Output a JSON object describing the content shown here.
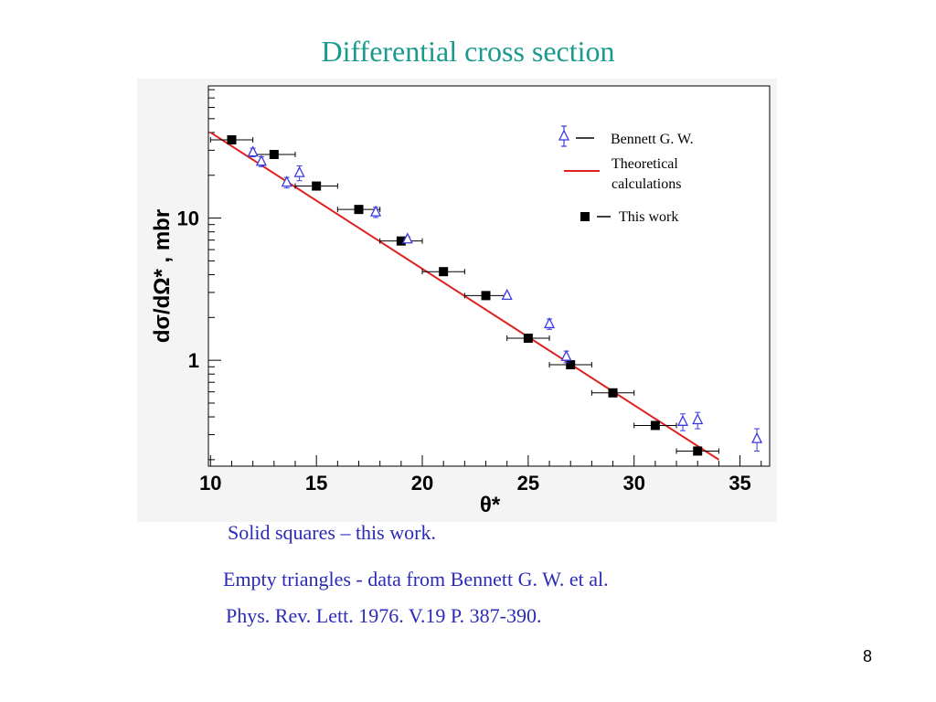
{
  "slide": {
    "title": "Differential  cross section",
    "captions": [
      "Solid squares – this work.",
      "Empty triangles -  data from  Bennett G. W. et al.",
      "Phys. Rev. Lett. 1976. V.19   P. 387-390."
    ],
    "page_number": "8"
  },
  "colors": {
    "title": "#1a9a8e",
    "caption": "#2b2bb8",
    "triangles": "#3a3ae0",
    "theory_line": "#e02020",
    "squares": "#000000"
  },
  "chart_data": {
    "type": "scatter",
    "title": "",
    "xlabel": "θ*",
    "ylabel": "dσ/dΩ* , mbr",
    "x_ticks": [
      "10",
      "15",
      "20",
      "25",
      "30",
      "35"
    ],
    "y_ticks": [
      "1",
      "10"
    ],
    "xlim": [
      9.9,
      36.4
    ],
    "ylim": [
      0.18,
      85
    ],
    "y_scale": "log",
    "legend_position": "top-right",
    "legend": [
      {
        "label": "Bennett G. W.",
        "marker": "open-triangle"
      },
      {
        "label": "Theoretical",
        "label2": "calculations",
        "marker": "line"
      },
      {
        "label": "This work",
        "marker": "filled-square"
      }
    ],
    "series": [
      {
        "name": "This work",
        "marker": "filled-square",
        "points": [
          {
            "x": 11,
            "y": 35.5,
            "xerr": 1.0
          },
          {
            "x": 13,
            "y": 28.0,
            "xerr": 1.0
          },
          {
            "x": 15,
            "y": 16.8,
            "xerr": 1.0
          },
          {
            "x": 17,
            "y": 11.5,
            "xerr": 1.0
          },
          {
            "x": 19,
            "y": 6.9,
            "xerr": 1.0
          },
          {
            "x": 21,
            "y": 4.2,
            "xerr": 1.0
          },
          {
            "x": 23,
            "y": 2.85,
            "xerr": 1.0
          },
          {
            "x": 25,
            "y": 1.43,
            "xerr": 1.0
          },
          {
            "x": 27,
            "y": 0.93,
            "xerr": 1.0
          },
          {
            "x": 29,
            "y": 0.59,
            "xerr": 1.0
          },
          {
            "x": 31,
            "y": 0.348,
            "xerr": 1.0
          },
          {
            "x": 33,
            "y": 0.23,
            "xerr": 1.0
          }
        ]
      },
      {
        "name": "Bennett G. W.",
        "marker": "open-triangle",
        "points": [
          {
            "x": 12.0,
            "y": 29.0,
            "yerr": 2.0
          },
          {
            "x": 12.4,
            "y": 25.0,
            "yerr": 2.0
          },
          {
            "x": 13.6,
            "y": 17.8,
            "yerr": 1.5
          },
          {
            "x": 14.2,
            "y": 20.8,
            "yerr": 2.5
          },
          {
            "x": 17.8,
            "y": 11.0,
            "yerr": 0.9
          },
          {
            "x": 19.3,
            "y": 7.1,
            "yerr": 0.3
          },
          {
            "x": 24.0,
            "y": 2.85,
            "yerr": 0.1
          },
          {
            "x": 26.0,
            "y": 1.8,
            "yerr": 0.15
          },
          {
            "x": 26.8,
            "y": 1.06,
            "yerr": 0.1
          },
          {
            "x": 32.3,
            "y": 0.37,
            "yerr": 0.05
          },
          {
            "x": 33.0,
            "y": 0.38,
            "yerr": 0.05
          },
          {
            "x": 35.8,
            "y": 0.28,
            "yerr": 0.05
          }
        ]
      },
      {
        "name": "Theoretical calculations",
        "marker": "line",
        "points": [
          {
            "x": 10.0,
            "y": 40.0
          },
          {
            "x": 34.0,
            "y": 0.2
          }
        ]
      }
    ]
  }
}
